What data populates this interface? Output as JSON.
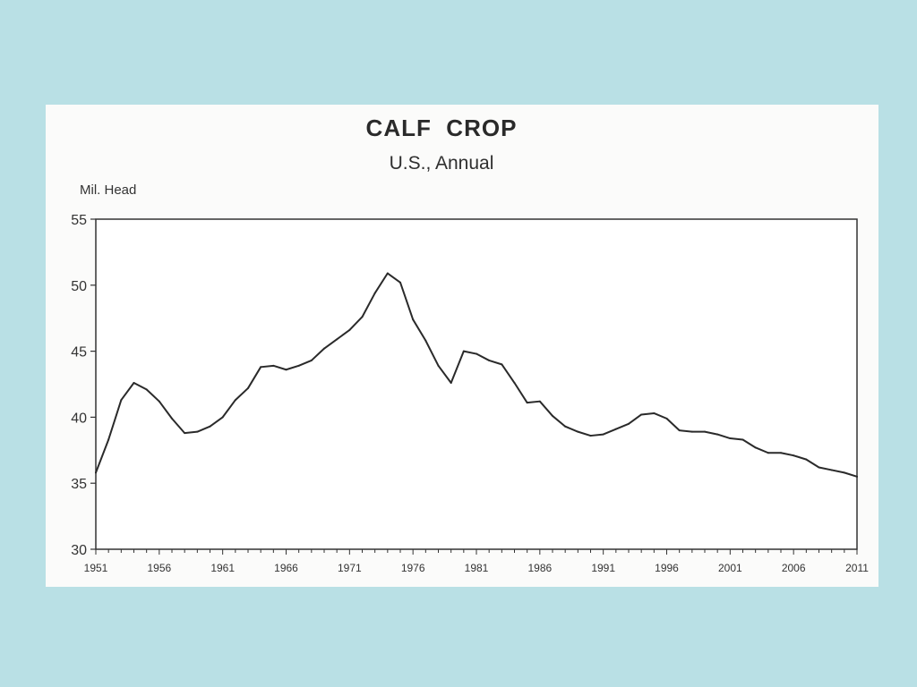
{
  "page": {
    "background": "#b9e0e5",
    "card_background": "#fbfbfa"
  },
  "chart_data": {
    "type": "line",
    "title": "CALF  CROP",
    "subtitle": "U.S., Annual",
    "ylabel": "Mil. Head",
    "xlabel": "",
    "ylim": [
      30,
      55
    ],
    "xlim": [
      1951,
      2011
    ],
    "yticks": [
      30,
      35,
      40,
      45,
      50,
      55
    ],
    "xticks": [
      "1951",
      "1956",
      "1961",
      "1966",
      "1971",
      "1976",
      "1981",
      "1986",
      "1991",
      "1996",
      "2001",
      "2006",
      "2011"
    ],
    "grid": false,
    "line_color": "#2a2a2a",
    "series": [
      {
        "x": [
          1951,
          1952,
          1953,
          1954,
          1955,
          1956,
          1957,
          1958,
          1959,
          1960,
          1961,
          1962,
          1963,
          1964,
          1965,
          1966,
          1967,
          1968,
          1969,
          1970,
          1971,
          1972,
          1973,
          1974,
          1975,
          1976,
          1977,
          1978,
          1979,
          1980,
          1981,
          1982,
          1983,
          1984,
          1985,
          1986,
          1987,
          1988,
          1989,
          1990,
          1991,
          1992,
          1993,
          1994,
          1995,
          1996,
          1997,
          1998,
          1999,
          2000,
          2001,
          2002,
          2003,
          2004,
          2005,
          2006,
          2007,
          2008,
          2009,
          2010,
          2011
        ],
        "values": [
          35.8,
          38.3,
          41.3,
          42.6,
          42.1,
          41.2,
          39.9,
          38.8,
          38.9,
          39.3,
          40.0,
          41.3,
          42.2,
          43.8,
          43.9,
          43.6,
          43.9,
          44.3,
          45.2,
          45.9,
          46.6,
          47.6,
          49.4,
          50.9,
          50.2,
          47.4,
          45.8,
          43.9,
          42.6,
          45.0,
          44.8,
          44.3,
          44.0,
          42.6,
          41.1,
          41.2,
          40.1,
          39.3,
          38.9,
          38.6,
          38.7,
          39.1,
          39.5,
          40.2,
          40.3,
          39.9,
          39.0,
          38.9,
          38.9,
          38.7,
          38.4,
          38.3,
          37.7,
          37.3,
          37.3,
          37.1,
          36.8,
          36.2,
          36.0,
          35.8,
          35.5
        ]
      }
    ]
  }
}
